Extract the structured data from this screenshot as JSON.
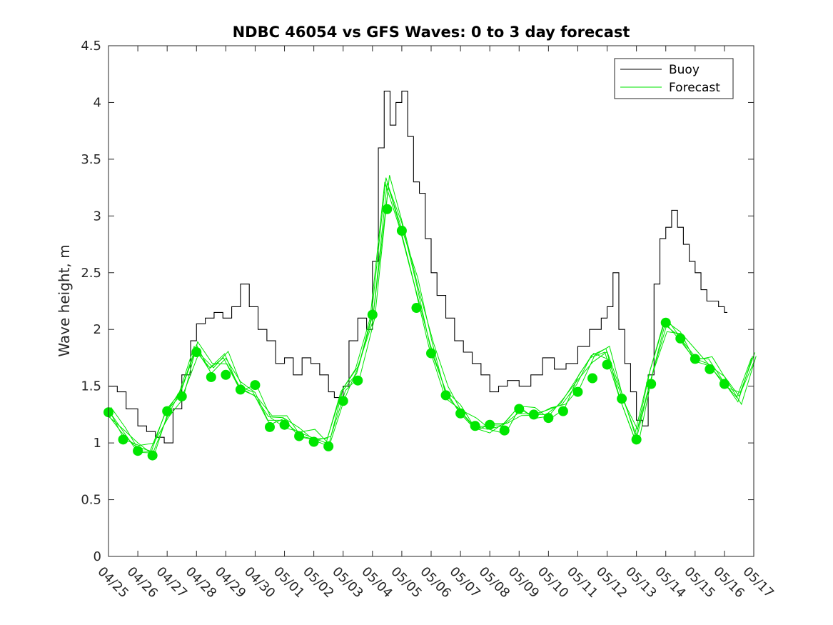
{
  "chart_data": {
    "type": "line",
    "title": "NDBC 46054 vs GFS Waves: 0 to 3 day forecast",
    "xlabel": "",
    "ylabel": "Wave height, m",
    "ylim": [
      0,
      4.5
    ],
    "yticks": [
      "0",
      "0.5",
      "1",
      "1.5",
      "2",
      "2.5",
      "3",
      "3.5",
      "4",
      "4.5"
    ],
    "xlim_days": [
      0,
      22
    ],
    "xticks": [
      "04/25",
      "04/26",
      "04/27",
      "04/28",
      "04/29",
      "04/30",
      "05/01",
      "05/02",
      "05/03",
      "05/04",
      "05/05",
      "05/06",
      "05/07",
      "05/08",
      "05/09",
      "05/10",
      "05/11",
      "05/12",
      "05/13",
      "05/14",
      "05/15",
      "05/16",
      "05/17"
    ],
    "grid": false,
    "legend_position": "top-right",
    "colors": {
      "buoy": "#000000",
      "forecast": "#00e600",
      "marker": "#00e600"
    },
    "series": [
      {
        "name": "Buoy",
        "x": [
          0,
          0.3,
          0.6,
          1.0,
          1.3,
          1.6,
          1.9,
          2.2,
          2.5,
          2.8,
          3.0,
          3.3,
          3.6,
          3.9,
          4.2,
          4.5,
          4.8,
          5.1,
          5.4,
          5.7,
          6.0,
          6.3,
          6.6,
          6.9,
          7.2,
          7.5,
          7.7,
          7.9,
          8.0,
          8.2,
          8.5,
          8.8,
          9.0,
          9.2,
          9.4,
          9.6,
          9.8,
          10.0,
          10.2,
          10.4,
          10.6,
          10.8,
          11.0,
          11.2,
          11.5,
          11.8,
          12.1,
          12.4,
          12.7,
          13.0,
          13.3,
          13.6,
          14.0,
          14.4,
          14.8,
          15.2,
          15.6,
          16.0,
          16.4,
          16.8,
          17.0,
          17.2,
          17.4,
          17.6,
          17.8,
          18.0,
          18.2,
          18.4,
          18.6,
          18.8,
          19.0,
          19.2,
          19.4,
          19.6,
          19.8,
          20.0,
          20.2,
          20.4,
          20.6,
          20.8,
          21.0,
          21.1
        ],
        "y": [
          1.5,
          1.45,
          1.3,
          1.15,
          1.1,
          1.05,
          1.0,
          1.3,
          1.6,
          1.9,
          2.05,
          2.1,
          2.15,
          2.1,
          2.2,
          2.4,
          2.2,
          2.0,
          1.9,
          1.7,
          1.75,
          1.6,
          1.75,
          1.7,
          1.6,
          1.45,
          1.4,
          1.35,
          1.5,
          1.9,
          2.1,
          2.0,
          2.6,
          3.6,
          4.1,
          3.8,
          4.0,
          4.1,
          3.7,
          3.3,
          3.2,
          2.8,
          2.5,
          2.3,
          2.1,
          1.9,
          1.8,
          1.7,
          1.6,
          1.45,
          1.5,
          1.55,
          1.5,
          1.6,
          1.75,
          1.65,
          1.7,
          1.85,
          2.0,
          2.1,
          2.2,
          2.5,
          2.0,
          1.7,
          1.45,
          1.2,
          1.15,
          1.6,
          2.4,
          2.8,
          2.9,
          3.05,
          2.9,
          2.75,
          2.6,
          2.5,
          2.35,
          2.25,
          2.25,
          2.2,
          2.15,
          2.15
        ]
      },
      {
        "name": "Forecast",
        "x": [
          0,
          0.5,
          1.0,
          1.5,
          2.0,
          2.5,
          3.0,
          3.5,
          4.0,
          4.5,
          5.0,
          5.5,
          6.0,
          6.5,
          7.0,
          7.5,
          8.0,
          8.5,
          9.0,
          9.5,
          10.0,
          10.5,
          11.0,
          11.5,
          12.0,
          12.5,
          13.0,
          13.5,
          14.0,
          14.5,
          15.0,
          15.5,
          16.0,
          16.5,
          17.0,
          17.5,
          18.0,
          18.5,
          19.0,
          19.5,
          20.0,
          20.5,
          21.0,
          21.5,
          22.0
        ],
        "y": [
          1.27,
          1.1,
          0.97,
          0.93,
          1.25,
          1.45,
          1.85,
          1.65,
          1.75,
          1.5,
          1.45,
          1.2,
          1.2,
          1.1,
          1.05,
          1.0,
          1.45,
          1.65,
          2.1,
          3.3,
          2.9,
          2.4,
          1.85,
          1.45,
          1.3,
          1.15,
          1.12,
          1.15,
          1.3,
          1.25,
          1.25,
          1.35,
          1.55,
          1.75,
          1.8,
          1.4,
          1.05,
          1.6,
          2.05,
          1.95,
          1.75,
          1.7,
          1.55,
          1.4,
          1.75
        ]
      }
    ],
    "markers": {
      "x": [
        0,
        0.5,
        1.0,
        1.5,
        2.0,
        2.5,
        3.0,
        3.5,
        4.0,
        4.5,
        5.0,
        5.5,
        6.0,
        6.5,
        7.0,
        7.5,
        8.0,
        8.5,
        9.0,
        9.5,
        10.0,
        10.5,
        11.0,
        11.5,
        12.0,
        12.5,
        13.0,
        13.5,
        14.0,
        14.5,
        15.0,
        15.5,
        16.0,
        16.5,
        17.0,
        17.5,
        18.0,
        18.5,
        19.0,
        19.5,
        20.0,
        20.5,
        21.0
      ],
      "y": [
        1.27,
        1.03,
        0.93,
        0.89,
        1.28,
        1.41,
        1.8,
        1.58,
        1.6,
        1.47,
        1.51,
        1.14,
        1.16,
        1.06,
        1.01,
        0.97,
        1.37,
        1.55,
        2.13,
        3.06,
        2.87,
        2.19,
        1.79,
        1.42,
        1.26,
        1.15,
        1.16,
        1.11,
        1.3,
        1.25,
        1.22,
        1.28,
        1.45,
        1.57,
        1.69,
        1.39,
        1.03,
        1.52,
        2.06,
        1.92,
        1.74,
        1.65,
        1.52
      ]
    }
  }
}
